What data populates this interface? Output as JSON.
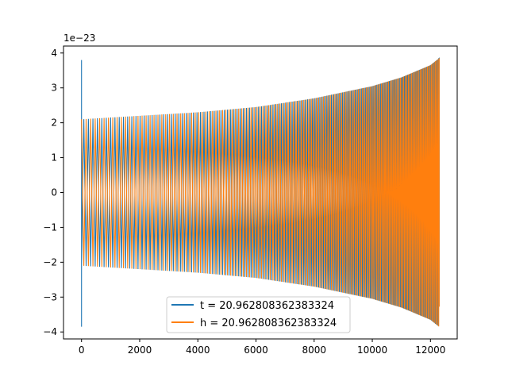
{
  "chart_data": {
    "type": "line",
    "title": "",
    "xlabel": "",
    "ylabel": "",
    "offset_label": "1e−23",
    "xlim": [
      -620,
      12920
    ],
    "ylim": [
      -4.2,
      4.2
    ],
    "x_ticks": [
      0,
      2000,
      4000,
      6000,
      8000,
      10000,
      12000
    ],
    "x_tick_labels": [
      "0",
      "2000",
      "4000",
      "6000",
      "8000",
      "10000",
      "12000"
    ],
    "y_ticks": [
      -4,
      -3,
      -2,
      -1,
      0,
      1,
      2,
      3,
      4
    ],
    "y_tick_labels": [
      "−4",
      "−3",
      "−2",
      "−1",
      "0",
      "1",
      "2",
      "3",
      "4"
    ],
    "grid": false,
    "legend_position": "lower-center",
    "series": [
      {
        "name": "t = 20.962808362383324",
        "color": "#1f77b4",
        "x_start": 0,
        "x_end": 12300,
        "initial_spike": [
          3.8,
          -3.85
        ],
        "envelope_x": [
          0,
          2000,
          4000,
          6000,
          8000,
          10000,
          11000,
          12000,
          12300
        ],
        "envelope_upper": [
          2.1,
          2.2,
          2.3,
          2.45,
          2.7,
          3.05,
          3.3,
          3.65,
          3.85
        ],
        "envelope_lower": [
          -2.1,
          -2.2,
          -2.3,
          -2.45,
          -2.7,
          -3.05,
          -3.3,
          -3.65,
          -3.85
        ]
      },
      {
        "name": "h = 20.962808362383324",
        "color": "#ff7f0e",
        "x_start": 0,
        "x_end": 12300,
        "envelope_x": [
          0,
          2000,
          4000,
          6000,
          8000,
          10000,
          11000,
          12000,
          12300
        ],
        "envelope_upper": [
          2.1,
          2.2,
          2.3,
          2.45,
          2.7,
          3.05,
          3.3,
          3.65,
          3.85
        ],
        "envelope_lower": [
          -2.1,
          -2.2,
          -2.3,
          -2.45,
          -2.7,
          -3.05,
          -3.3,
          -3.65,
          -3.85
        ]
      }
    ]
  }
}
